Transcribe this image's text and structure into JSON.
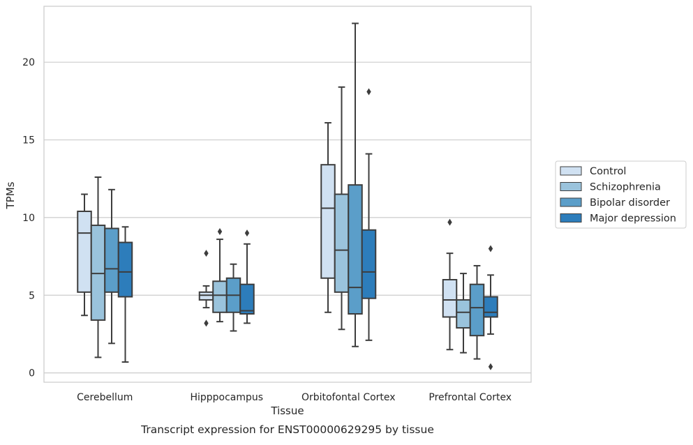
{
  "chart_data": {
    "type": "box",
    "title": "",
    "caption": "Transcript expression for ENST00000629295 by tissue",
    "xlabel": "Tissue",
    "ylabel": "TPMs",
    "ylim": [
      -0.6,
      23.6
    ],
    "yticks": [
      0,
      5,
      10,
      15,
      20
    ],
    "grid": "horizontal",
    "legend_position": "right",
    "categories": [
      "Cerebellum",
      "Hipppocampus",
      "Orbitofontal Cortex",
      "Prefrontal Cortex"
    ],
    "series": [
      {
        "name": "Control",
        "color": "#d0e1f2",
        "boxes": [
          {
            "whislo": 3.7,
            "q1": 5.2,
            "med": 9.0,
            "q3": 10.4,
            "whishi": 11.5,
            "fliers": []
          },
          {
            "whislo": 4.2,
            "q1": 4.7,
            "med": 5.0,
            "q3": 5.2,
            "whishi": 5.6,
            "fliers": [
              7.7,
              3.2
            ]
          },
          {
            "whislo": 3.9,
            "q1": 6.1,
            "med": 10.6,
            "q3": 13.4,
            "whishi": 16.1,
            "fliers": []
          },
          {
            "whislo": 1.5,
            "q1": 3.6,
            "med": 4.7,
            "q3": 6.0,
            "whishi": 7.7,
            "fliers": [
              9.7
            ]
          }
        ]
      },
      {
        "name": "Schizophrenia",
        "color": "#9ac3dc",
        "boxes": [
          {
            "whislo": 1.0,
            "q1": 3.4,
            "med": 6.4,
            "q3": 9.5,
            "whishi": 12.6,
            "fliers": []
          },
          {
            "whislo": 3.3,
            "q1": 3.9,
            "med": 5.0,
            "q3": 5.9,
            "whishi": 8.6,
            "fliers": [
              9.1
            ]
          },
          {
            "whislo": 2.8,
            "q1": 5.2,
            "med": 7.9,
            "q3": 11.5,
            "whishi": 18.4,
            "fliers": []
          },
          {
            "whislo": 1.3,
            "q1": 2.9,
            "med": 3.9,
            "q3": 4.7,
            "whishi": 6.4,
            "fliers": []
          }
        ]
      },
      {
        "name": "Bipolar disorder",
        "color": "#5b9ec9",
        "boxes": [
          {
            "whislo": 1.9,
            "q1": 5.2,
            "med": 6.7,
            "q3": 9.3,
            "whishi": 11.8,
            "fliers": []
          },
          {
            "whislo": 2.7,
            "q1": 3.9,
            "med": 5.0,
            "q3": 6.1,
            "whishi": 7.0,
            "fliers": []
          },
          {
            "whislo": 1.7,
            "q1": 3.8,
            "med": 5.5,
            "q3": 12.1,
            "whishi": 22.5,
            "fliers": []
          },
          {
            "whislo": 0.9,
            "q1": 2.4,
            "med": 4.2,
            "q3": 5.7,
            "whishi": 6.9,
            "fliers": []
          }
        ]
      },
      {
        "name": "Major depression",
        "color": "#2d7dbb",
        "boxes": [
          {
            "whislo": 0.7,
            "q1": 4.9,
            "med": 6.5,
            "q3": 8.4,
            "whishi": 9.4,
            "fliers": []
          },
          {
            "whislo": 3.2,
            "q1": 3.8,
            "med": 4.0,
            "q3": 5.7,
            "whishi": 8.3,
            "fliers": [
              9.0
            ]
          },
          {
            "whislo": 2.1,
            "q1": 4.8,
            "med": 6.5,
            "q3": 9.2,
            "whishi": 14.1,
            "fliers": [
              18.1
            ]
          },
          {
            "whislo": 2.5,
            "q1": 3.6,
            "med": 3.9,
            "q3": 4.9,
            "whishi": 6.3,
            "fliers": [
              8.0,
              0.4
            ]
          }
        ]
      }
    ]
  }
}
